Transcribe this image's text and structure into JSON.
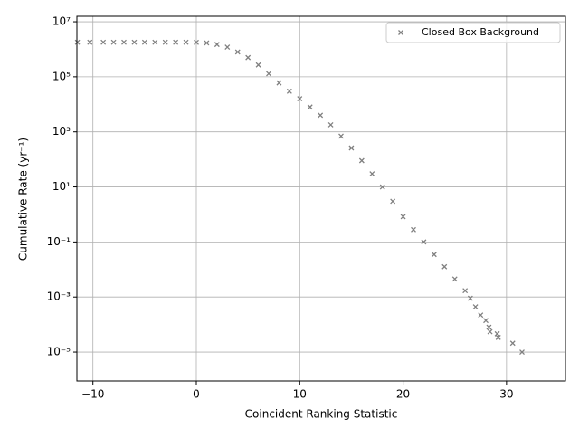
{
  "chart_data": {
    "type": "scatter",
    "xlabel": "Coincident Ranking Statistic",
    "ylabel": "Cumulative Rate (yr⁻¹)",
    "yscale": "log",
    "grid": true,
    "legend": "upper right",
    "marker": "x",
    "xlim": [
      -11.55,
      35.7
    ],
    "ylim": [
      8.9e-07,
      15800000.0
    ],
    "xticks": [
      {
        "value": -10,
        "label": "−10"
      },
      0,
      10,
      20,
      30
    ],
    "yticks": [
      {
        "value": 1e-05,
        "label": "10⁻⁵"
      },
      {
        "value": 0.001,
        "label": "10⁻³"
      },
      {
        "value": 0.1,
        "label": "10⁻¹"
      },
      {
        "value": 10,
        "label": "10¹"
      },
      {
        "value": 1000,
        "label": "10³"
      },
      {
        "value": 100000,
        "label": "10⁵"
      },
      {
        "value": 10000000,
        "label": "10⁷"
      }
    ],
    "series": [
      {
        "name": "Closed Box Background",
        "color": "#808080",
        "x": [
          -11.5,
          -10.3,
          -9,
          -8,
          -7,
          -6,
          -5,
          -4,
          -3,
          -2,
          -1,
          0,
          1,
          2,
          3,
          4,
          5,
          6,
          7,
          8,
          9,
          10,
          11,
          12,
          13,
          14,
          15,
          16,
          17,
          18,
          19,
          20,
          21,
          22,
          23,
          24,
          25,
          26,
          26.5,
          27,
          27.5,
          28,
          28.3,
          28.4,
          29.1,
          29.2,
          30.6,
          31.5
        ],
        "values": [
          1800000,
          1800000,
          1800000,
          1800000,
          1800000,
          1800000,
          1800000,
          1800000,
          1800000,
          1800000,
          1800000,
          1780000,
          1700000,
          1500000,
          1200000,
          800000,
          500000,
          270000,
          130000,
          60000,
          30000,
          16000,
          8000,
          4000,
          1800,
          700,
          260,
          90,
          30,
          10,
          3,
          0.83,
          0.28,
          0.1,
          0.035,
          0.0126,
          0.0045,
          0.0017,
          0.0009,
          0.00044,
          0.00022,
          0.00014,
          8e-05,
          5.5e-05,
          4.6e-05,
          3.4e-05,
          2.1e-05,
          1e-05
        ]
      }
    ]
  }
}
